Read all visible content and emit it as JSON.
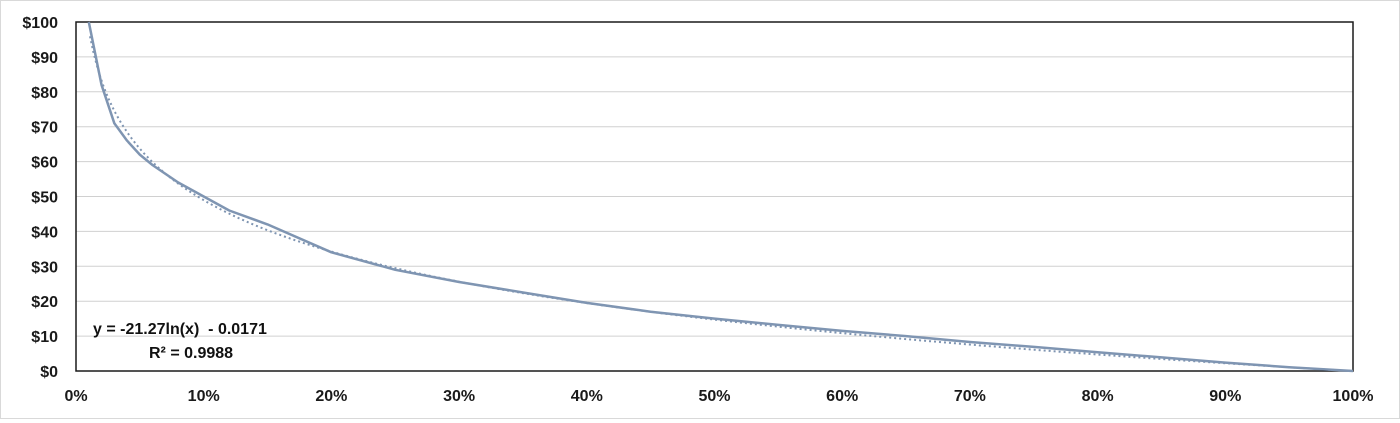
{
  "chart_data": {
    "type": "line",
    "title": "",
    "xlabel": "",
    "ylabel": "",
    "xlim": [
      0,
      1
    ],
    "ylim": [
      0,
      100
    ],
    "grid": true,
    "legend": "none",
    "x_ticks": [
      "0%",
      "10%",
      "20%",
      "30%",
      "40%",
      "50%",
      "60%",
      "70%",
      "80%",
      "90%",
      "100%"
    ],
    "y_ticks": [
      "$0",
      "$10",
      "$20",
      "$30",
      "$40",
      "$50",
      "$60",
      "$70",
      "$80",
      "$90",
      "$100"
    ],
    "series": [
      {
        "style": "solid",
        "color": "#7f95b2",
        "x": [
          0.01,
          0.02,
          0.03,
          0.04,
          0.05,
          0.06,
          0.08,
          0.1,
          0.12,
          0.15,
          0.2,
          0.25,
          0.3,
          0.35,
          0.4,
          0.45,
          0.5,
          0.55,
          0.6,
          0.65,
          0.7,
          0.75,
          0.8,
          0.85,
          0.9,
          0.95,
          1.0
        ],
        "y": [
          100,
          82,
          71,
          66,
          62,
          59,
          54,
          50,
          46,
          42,
          34,
          29,
          25.5,
          22.5,
          19.5,
          17,
          15,
          13.2,
          11.5,
          10,
          8.3,
          6.9,
          5.4,
          3.9,
          2.4,
          1.1,
          0
        ]
      },
      {
        "style": "dotted",
        "color": "#7f95b2",
        "trendline": "logarithmic",
        "equation": "y = -21.27ln(x)  - 0.0171",
        "r_squared": "R² = 0.9988",
        "a": -21.27,
        "b": -0.0171
      }
    ]
  },
  "annotation": {
    "equation": "y = -21.27ln(x)  - 0.0171",
    "r_squared": "R² = 0.9988"
  }
}
